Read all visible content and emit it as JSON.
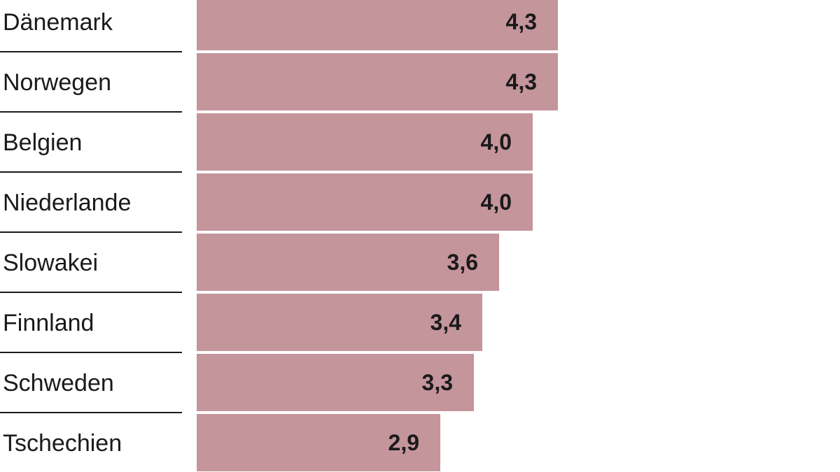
{
  "colors": {
    "bar": "#c5959c",
    "text": "#1a1a1a",
    "rule": "#1a1a1a",
    "background": "#ffffff"
  },
  "chart_data": {
    "type": "bar",
    "orientation": "horizontal",
    "categories": [
      "Dänemark",
      "Norwegen",
      "Belgien",
      "Niederlande",
      "Slowakei",
      "Finnland",
      "Schweden",
      "Tschechien"
    ],
    "values": [
      4.3,
      4.3,
      4.0,
      4.0,
      3.6,
      3.4,
      3.3,
      2.9
    ],
    "value_labels": [
      "4,3",
      "4,3",
      "4,0",
      "4,0",
      "3,6",
      "3,4",
      "3,3",
      "2,9"
    ],
    "title": "",
    "xlabel": "",
    "ylabel": "",
    "xlim": [
      0,
      4.3
    ],
    "grid": false,
    "legend": "none"
  }
}
